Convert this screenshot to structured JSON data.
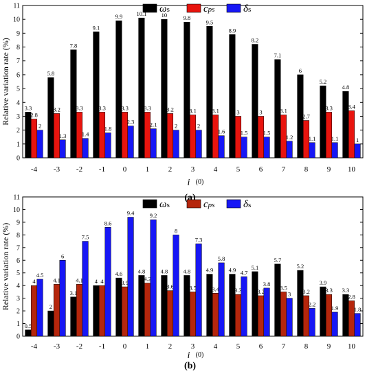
{
  "chart_data": [
    {
      "type": "bar",
      "panel_label": "(a)",
      "title": "",
      "ylabel": "Relative variation rate (%)",
      "xlabel_main": "i",
      "xlabel_unit": "(0)",
      "ylim": [
        0,
        11
      ],
      "yticks": [
        0,
        1,
        2,
        3,
        4,
        5,
        6,
        7,
        8,
        9,
        10,
        11
      ],
      "categories": [
        "-4",
        "-3",
        "-2",
        "-1",
        "0",
        "1",
        "2",
        "3",
        "4",
        "5",
        "6",
        "7",
        "8",
        "9",
        "10"
      ],
      "legend_position": "top",
      "series": [
        {
          "name": "ωs",
          "color": "#000000",
          "label_color": "#000000",
          "values": [
            3.3,
            5.8,
            7.8,
            9.1,
            9.9,
            10.1,
            10,
            9.8,
            9.5,
            8.9,
            8.2,
            7.1,
            6,
            5.2,
            4.8
          ]
        },
        {
          "name": "cps",
          "color": "#e8140e",
          "label_color": "#000000",
          "values": [
            2.8,
            3.2,
            3.3,
            3.3,
            3.3,
            3.3,
            3.2,
            3.1,
            3.1,
            3,
            3,
            3.1,
            2.7,
            3.3,
            3.4
          ]
        },
        {
          "name": "δs",
          "color": "#1717f5",
          "label_color": "#000000",
          "values": [
            2,
            1.3,
            1.4,
            1.8,
            2.3,
            2.1,
            2,
            2,
            1.6,
            1.5,
            1.5,
            1.2,
            1.1,
            1.1,
            1
          ]
        }
      ]
    },
    {
      "type": "bar",
      "panel_label": "(b)",
      "title": "",
      "ylabel": "Relative variation rate (%)",
      "xlabel_main": "i",
      "xlabel_unit": "(0)",
      "ylim": [
        0,
        11
      ],
      "yticks": [
        0,
        1,
        2,
        3,
        4,
        5,
        6,
        7,
        8,
        9,
        10,
        11
      ],
      "categories": [
        "-4",
        "-3",
        "-2",
        "-1",
        "0",
        "1",
        "2",
        "3",
        "4",
        "5",
        "6",
        "7",
        "8",
        "9",
        "10"
      ],
      "legend_position": "top",
      "series": [
        {
          "name": "ωs",
          "color": "#000000",
          "label_color": "#000000",
          "values": [
            0.5,
            2,
            3.1,
            4,
            4.6,
            4.8,
            4.8,
            4.8,
            4.9,
            4.9,
            5.1,
            5.7,
            5.2,
            3.9,
            3.3
          ]
        },
        {
          "name": "cps",
          "color": "#b5260c",
          "label_color": "#000000",
          "values": [
            4,
            4.1,
            4.1,
            4,
            3.9,
            4.2,
            3.6,
            3.5,
            3.4,
            3.3,
            3.2,
            3.5,
            3.2,
            3.3,
            2.8
          ]
        },
        {
          "name": "δs",
          "color": "#1717f5",
          "label_color": "#000000",
          "values": [
            4.5,
            6,
            7.5,
            8.6,
            9.4,
            9.2,
            8,
            7.3,
            5.8,
            4.7,
            3.8,
            3,
            2.2,
            1.9,
            1.8
          ]
        }
      ]
    }
  ]
}
